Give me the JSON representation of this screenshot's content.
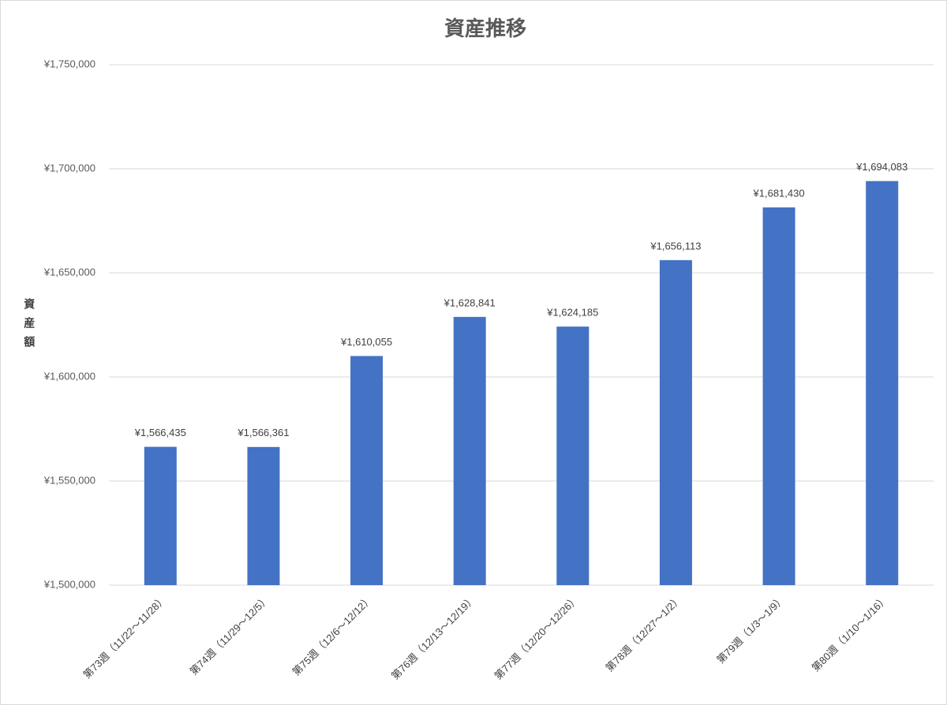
{
  "chart_data": {
    "type": "bar",
    "title": "資産推移",
    "y_label": "資産額",
    "categories": [
      "第73週（11/22～11/28）",
      "第74週（11/29～12/5）",
      "第75週（12/6～12/12）",
      "第76週（12/13～12/19）",
      "第77週（12/20～12/26）",
      "第78週（12/27～1/2）",
      "第79週（1/3～1/9）",
      "第80週（1/10～1/16）"
    ],
    "values": [
      1566435,
      1566361,
      1610055,
      1628841,
      1624185,
      1656113,
      1681430,
      1694083
    ],
    "value_labels": [
      "¥1,566,435",
      "¥1,566,361",
      "¥1,610,055",
      "¥1,628,841",
      "¥1,624,185",
      "¥1,656,113",
      "¥1,681,430",
      "¥1,694,083"
    ],
    "color": "#4472c4",
    "ylim": [
      1500000,
      1750000
    ],
    "yticks": [
      {
        "value": 1500000,
        "label": "¥1,500,000"
      },
      {
        "value": 1550000,
        "label": "¥1,550,000"
      },
      {
        "value": 1600000,
        "label": "¥1,600,000"
      },
      {
        "value": 1650000,
        "label": "¥1,650,000"
      },
      {
        "value": 1700000,
        "label": "¥1,700,000"
      },
      {
        "value": 1750000,
        "label": "¥1,750,000"
      }
    ],
    "grid": true
  }
}
